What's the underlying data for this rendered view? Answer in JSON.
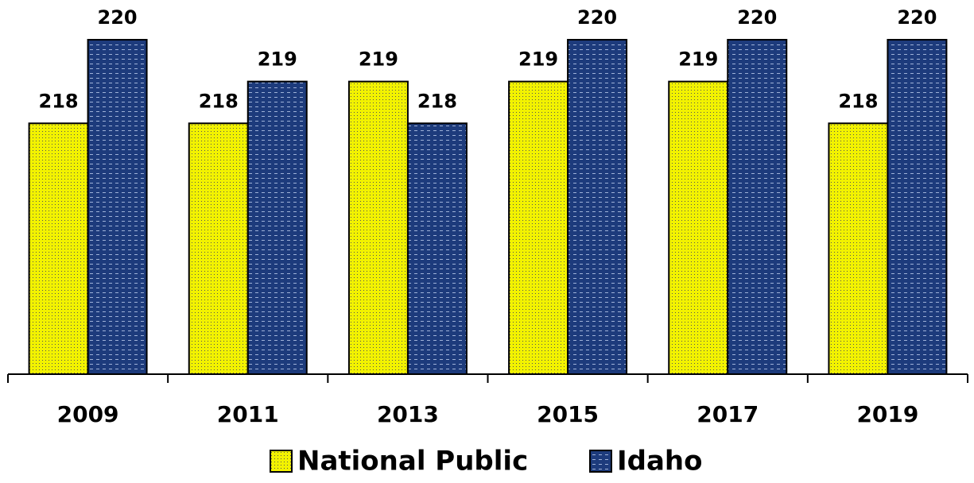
{
  "chart_data": {
    "type": "bar",
    "categories": [
      "2009",
      "2011",
      "2013",
      "2015",
      "2017",
      "2019"
    ],
    "series": [
      {
        "name": "National Public",
        "color": "#f2f200",
        "values": [
          218,
          218,
          219,
          219,
          219,
          218
        ]
      },
      {
        "name": "Idaho",
        "color": "#1d3b7c",
        "values": [
          220,
          219,
          218,
          220,
          220,
          220
        ]
      }
    ],
    "ylim": [
      212,
      220
    ]
  }
}
